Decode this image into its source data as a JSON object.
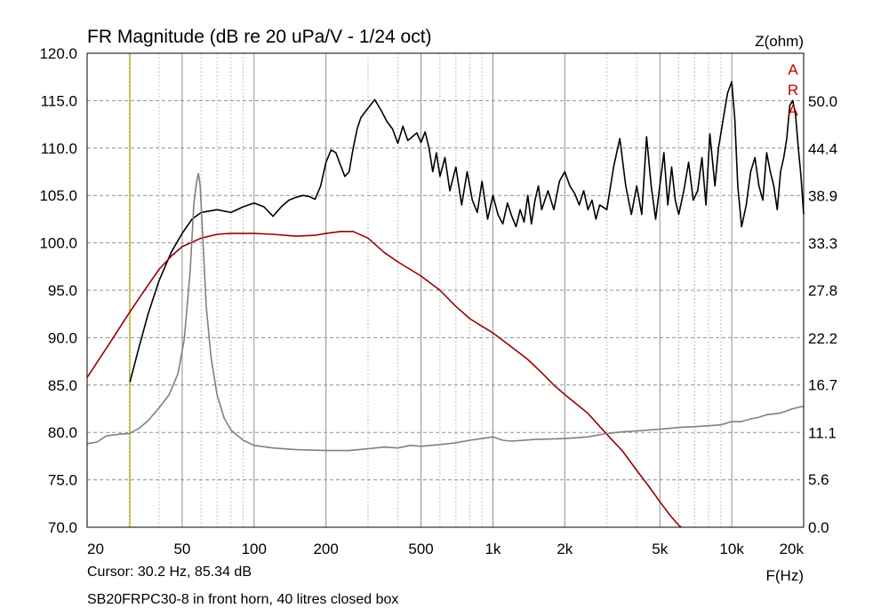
{
  "chart_data": {
    "type": "line",
    "title": "FR Magnitude (dB re 20 uPa/V - 1/24 oct)",
    "xlabel": "F(Hz)",
    "ylabel_right": "Z(ohm)",
    "x_scale": "log",
    "xlim": [
      20,
      20000
    ],
    "ylim": [
      70,
      120
    ],
    "ylim_right": [
      0,
      55.6
    ],
    "grid": true,
    "x_ticks": [
      {
        "value": 20,
        "label": "20"
      },
      {
        "value": 50,
        "label": "50"
      },
      {
        "value": 100,
        "label": "100"
      },
      {
        "value": 200,
        "label": "200"
      },
      {
        "value": 500,
        "label": "500"
      },
      {
        "value": 1000,
        "label": "1k"
      },
      {
        "value": 2000,
        "label": "2k"
      },
      {
        "value": 5000,
        "label": "5k"
      },
      {
        "value": 10000,
        "label": "10k"
      },
      {
        "value": 20000,
        "label": "20k"
      }
    ],
    "y_ticks": [
      {
        "value": 120,
        "label": "120.0"
      },
      {
        "value": 115,
        "label": "115.0"
      },
      {
        "value": 110,
        "label": "110.0"
      },
      {
        "value": 105,
        "label": "105.0"
      },
      {
        "value": 100,
        "label": "100.0"
      },
      {
        "value": 95,
        "label": "95.0"
      },
      {
        "value": 90,
        "label": "90.0"
      },
      {
        "value": 85,
        "label": "85.0"
      },
      {
        "value": 80,
        "label": "80.0"
      },
      {
        "value": 75,
        "label": "75.0"
      },
      {
        "value": 70,
        "label": "70.0"
      }
    ],
    "y_ticks_right": [
      {
        "value": 50.0,
        "label": "50.0"
      },
      {
        "value": 44.4,
        "label": "44.4"
      },
      {
        "value": 38.9,
        "label": "38.9"
      },
      {
        "value": 33.3,
        "label": "33.3"
      },
      {
        "value": 27.8,
        "label": "27.8"
      },
      {
        "value": 22.2,
        "label": "22.2"
      },
      {
        "value": 16.7,
        "label": "16.7"
      },
      {
        "value": 11.1,
        "label": "11.1"
      },
      {
        "value": 5.6,
        "label": "5.6"
      },
      {
        "value": 0.0,
        "label": "0.0"
      }
    ],
    "curve_markers": [
      {
        "label": "A",
        "color": "#c00000"
      },
      {
        "label": "R",
        "color": "#c00000"
      },
      {
        "label": "A",
        "color": "#c00000"
      }
    ],
    "cursor": {
      "x": 30.2,
      "color": "#b0a800"
    },
    "series": [
      {
        "axis": "left",
        "color": "#000000",
        "points": [
          [
            30.2,
            85.3
          ],
          [
            33,
            89
          ],
          [
            36,
            92.5
          ],
          [
            40,
            96
          ],
          [
            45,
            99
          ],
          [
            50,
            101
          ],
          [
            55,
            102.5
          ],
          [
            60,
            103.2
          ],
          [
            70,
            103.5
          ],
          [
            80,
            103.2
          ],
          [
            90,
            103.8
          ],
          [
            100,
            104.2
          ],
          [
            110,
            103.8
          ],
          [
            120,
            102.8
          ],
          [
            130,
            103.8
          ],
          [
            140,
            104.5
          ],
          [
            150,
            104.8
          ],
          [
            160,
            105
          ],
          [
            170,
            104.9
          ],
          [
            180,
            104.6
          ],
          [
            190,
            106
          ],
          [
            200,
            108.5
          ],
          [
            210,
            109.8
          ],
          [
            220,
            109.5
          ],
          [
            230,
            108.2
          ],
          [
            240,
            107
          ],
          [
            250,
            107.5
          ],
          [
            260,
            110
          ],
          [
            270,
            112
          ],
          [
            280,
            113.2
          ],
          [
            300,
            114.2
          ],
          [
            320,
            115.1
          ],
          [
            340,
            114
          ],
          [
            360,
            112.8
          ],
          [
            380,
            112
          ],
          [
            400,
            110.5
          ],
          [
            420,
            112.3
          ],
          [
            440,
            110.8
          ],
          [
            460,
            111.2
          ],
          [
            480,
            111.6
          ],
          [
            500,
            110.6
          ],
          [
            520,
            111.7
          ],
          [
            540,
            110
          ],
          [
            560,
            107.5
          ],
          [
            580,
            109.5
          ],
          [
            600,
            107
          ],
          [
            630,
            109
          ],
          [
            660,
            105.5
          ],
          [
            700,
            108
          ],
          [
            740,
            104
          ],
          [
            780,
            107.5
          ],
          [
            820,
            104.5
          ],
          [
            860,
            103.2
          ],
          [
            900,
            106.5
          ],
          [
            950,
            102.5
          ],
          [
            1000,
            105
          ],
          [
            1050,
            103
          ],
          [
            1100,
            102
          ],
          [
            1150,
            104.2
          ],
          [
            1200,
            102.8
          ],
          [
            1250,
            101.7
          ],
          [
            1300,
            103.5
          ],
          [
            1350,
            102.2
          ],
          [
            1400,
            105
          ],
          [
            1450,
            102
          ],
          [
            1500,
            104.5
          ],
          [
            1550,
            106
          ],
          [
            1600,
            103.5
          ],
          [
            1700,
            105.5
          ],
          [
            1800,
            103.5
          ],
          [
            1900,
            106.5
          ],
          [
            2000,
            107.5
          ],
          [
            2100,
            106
          ],
          [
            2200,
            105.2
          ],
          [
            2300,
            104
          ],
          [
            2400,
            105.5
          ],
          [
            2500,
            103.5
          ],
          [
            2600,
            104.5
          ],
          [
            2700,
            102.5
          ],
          [
            2800,
            104
          ],
          [
            3000,
            103.5
          ],
          [
            3200,
            108
          ],
          [
            3400,
            111
          ],
          [
            3600,
            106
          ],
          [
            3800,
            103
          ],
          [
            4000,
            106
          ],
          [
            4200,
            103
          ],
          [
            4400,
            111.2
          ],
          [
            4600,
            106
          ],
          [
            4800,
            102.5
          ],
          [
            5000,
            106
          ],
          [
            5200,
            109.5
          ],
          [
            5400,
            104
          ],
          [
            5600,
            108
          ],
          [
            5800,
            104.5
          ],
          [
            6000,
            103
          ],
          [
            6300,
            105.5
          ],
          [
            6600,
            108.5
          ],
          [
            6900,
            104.5
          ],
          [
            7200,
            105.5
          ],
          [
            7500,
            109
          ],
          [
            7800,
            104
          ],
          [
            8100,
            111.5
          ],
          [
            8500,
            106
          ],
          [
            8800,
            110
          ],
          [
            9200,
            113
          ],
          [
            9600,
            115.8
          ],
          [
            10000,
            117
          ],
          [
            10300,
            113
          ],
          [
            10600,
            106
          ],
          [
            11000,
            101.7
          ],
          [
            11500,
            104
          ],
          [
            12000,
            107.5
          ],
          [
            12500,
            109
          ],
          [
            13000,
            106
          ],
          [
            13500,
            104.5
          ],
          [
            14000,
            109.5
          ],
          [
            14500,
            107.5
          ],
          [
            15000,
            106
          ],
          [
            15500,
            103.5
          ],
          [
            16000,
            107.5
          ],
          [
            16500,
            109
          ],
          [
            17000,
            111
          ],
          [
            17500,
            114.5
          ],
          [
            18000,
            115
          ],
          [
            18500,
            113.5
          ],
          [
            19000,
            110
          ],
          [
            19500,
            107
          ],
          [
            20000,
            103
          ]
        ]
      },
      {
        "axis": "left",
        "color": "#990000",
        "points": [
          [
            20,
            85.8
          ],
          [
            25,
            89.5
          ],
          [
            30,
            92.6
          ],
          [
            35,
            95.1
          ],
          [
            40,
            97.2
          ],
          [
            45,
            98.6
          ],
          [
            50,
            99.6
          ],
          [
            60,
            100.5
          ],
          [
            70,
            100.9
          ],
          [
            80,
            101
          ],
          [
            100,
            101
          ],
          [
            120,
            100.9
          ],
          [
            150,
            100.7
          ],
          [
            180,
            100.8
          ],
          [
            200,
            101
          ],
          [
            230,
            101.2
          ],
          [
            260,
            101.2
          ],
          [
            300,
            100.5
          ],
          [
            350,
            99
          ],
          [
            400,
            98
          ],
          [
            500,
            96.5
          ],
          [
            600,
            95
          ],
          [
            700,
            93.3
          ],
          [
            800,
            92
          ],
          [
            900,
            91.2
          ],
          [
            1000,
            90.5
          ],
          [
            1200,
            89
          ],
          [
            1400,
            87.7
          ],
          [
            1600,
            86.3
          ],
          [
            1800,
            85
          ],
          [
            2000,
            84
          ],
          [
            2500,
            82
          ],
          [
            3000,
            79.8
          ],
          [
            3500,
            78
          ],
          [
            4000,
            76
          ],
          [
            4500,
            74.3
          ],
          [
            5000,
            72.7
          ],
          [
            5500,
            71.3
          ],
          [
            6000,
            70.2
          ],
          [
            6150,
            70
          ]
        ]
      },
      {
        "axis": "right",
        "color": "#808080",
        "points": [
          [
            20,
            9.8
          ],
          [
            22,
            10
          ],
          [
            24,
            10.7
          ],
          [
            27,
            10.9
          ],
          [
            30,
            11
          ],
          [
            33,
            11.6
          ],
          [
            36,
            12.5
          ],
          [
            40,
            14
          ],
          [
            44,
            15.5
          ],
          [
            48,
            18
          ],
          [
            51,
            22
          ],
          [
            54,
            30
          ],
          [
            56,
            38
          ],
          [
            57.5,
            40.5
          ],
          [
            58.5,
            41.5
          ],
          [
            59.5,
            40
          ],
          [
            61,
            34
          ],
          [
            63,
            26
          ],
          [
            66,
            20
          ],
          [
            70,
            15.5
          ],
          [
            75,
            12.8
          ],
          [
            80,
            11.4
          ],
          [
            90,
            10.2
          ],
          [
            100,
            9.6
          ],
          [
            120,
            9.3
          ],
          [
            150,
            9.1
          ],
          [
            200,
            9
          ],
          [
            250,
            9
          ],
          [
            300,
            9.2
          ],
          [
            350,
            9.4
          ],
          [
            400,
            9.3
          ],
          [
            450,
            9.6
          ],
          [
            500,
            9.5
          ],
          [
            600,
            9.7
          ],
          [
            700,
            9.9
          ],
          [
            800,
            10.2
          ],
          [
            900,
            10.4
          ],
          [
            1000,
            10.6
          ],
          [
            1100,
            10.2
          ],
          [
            1200,
            10.1
          ],
          [
            1500,
            10.3
          ],
          [
            2000,
            10.4
          ],
          [
            2500,
            10.6
          ],
          [
            3000,
            11
          ],
          [
            3500,
            11.2
          ],
          [
            4000,
            11.3
          ],
          [
            5000,
            11.5
          ],
          [
            6000,
            11.7
          ],
          [
            7000,
            11.8
          ],
          [
            8000,
            11.9
          ],
          [
            9000,
            12
          ],
          [
            10000,
            12.4
          ],
          [
            11000,
            12.4
          ],
          [
            12000,
            12.7
          ],
          [
            13000,
            12.9
          ],
          [
            14000,
            13.2
          ],
          [
            16000,
            13.4
          ],
          [
            18000,
            13.9
          ],
          [
            20000,
            14.2
          ]
        ]
      }
    ]
  },
  "footer": {
    "cursor": "Cursor: 30.2 Hz, 85.34 dB",
    "description": "SB20FRPC30-8 in front horn, 40 litres closed box"
  }
}
